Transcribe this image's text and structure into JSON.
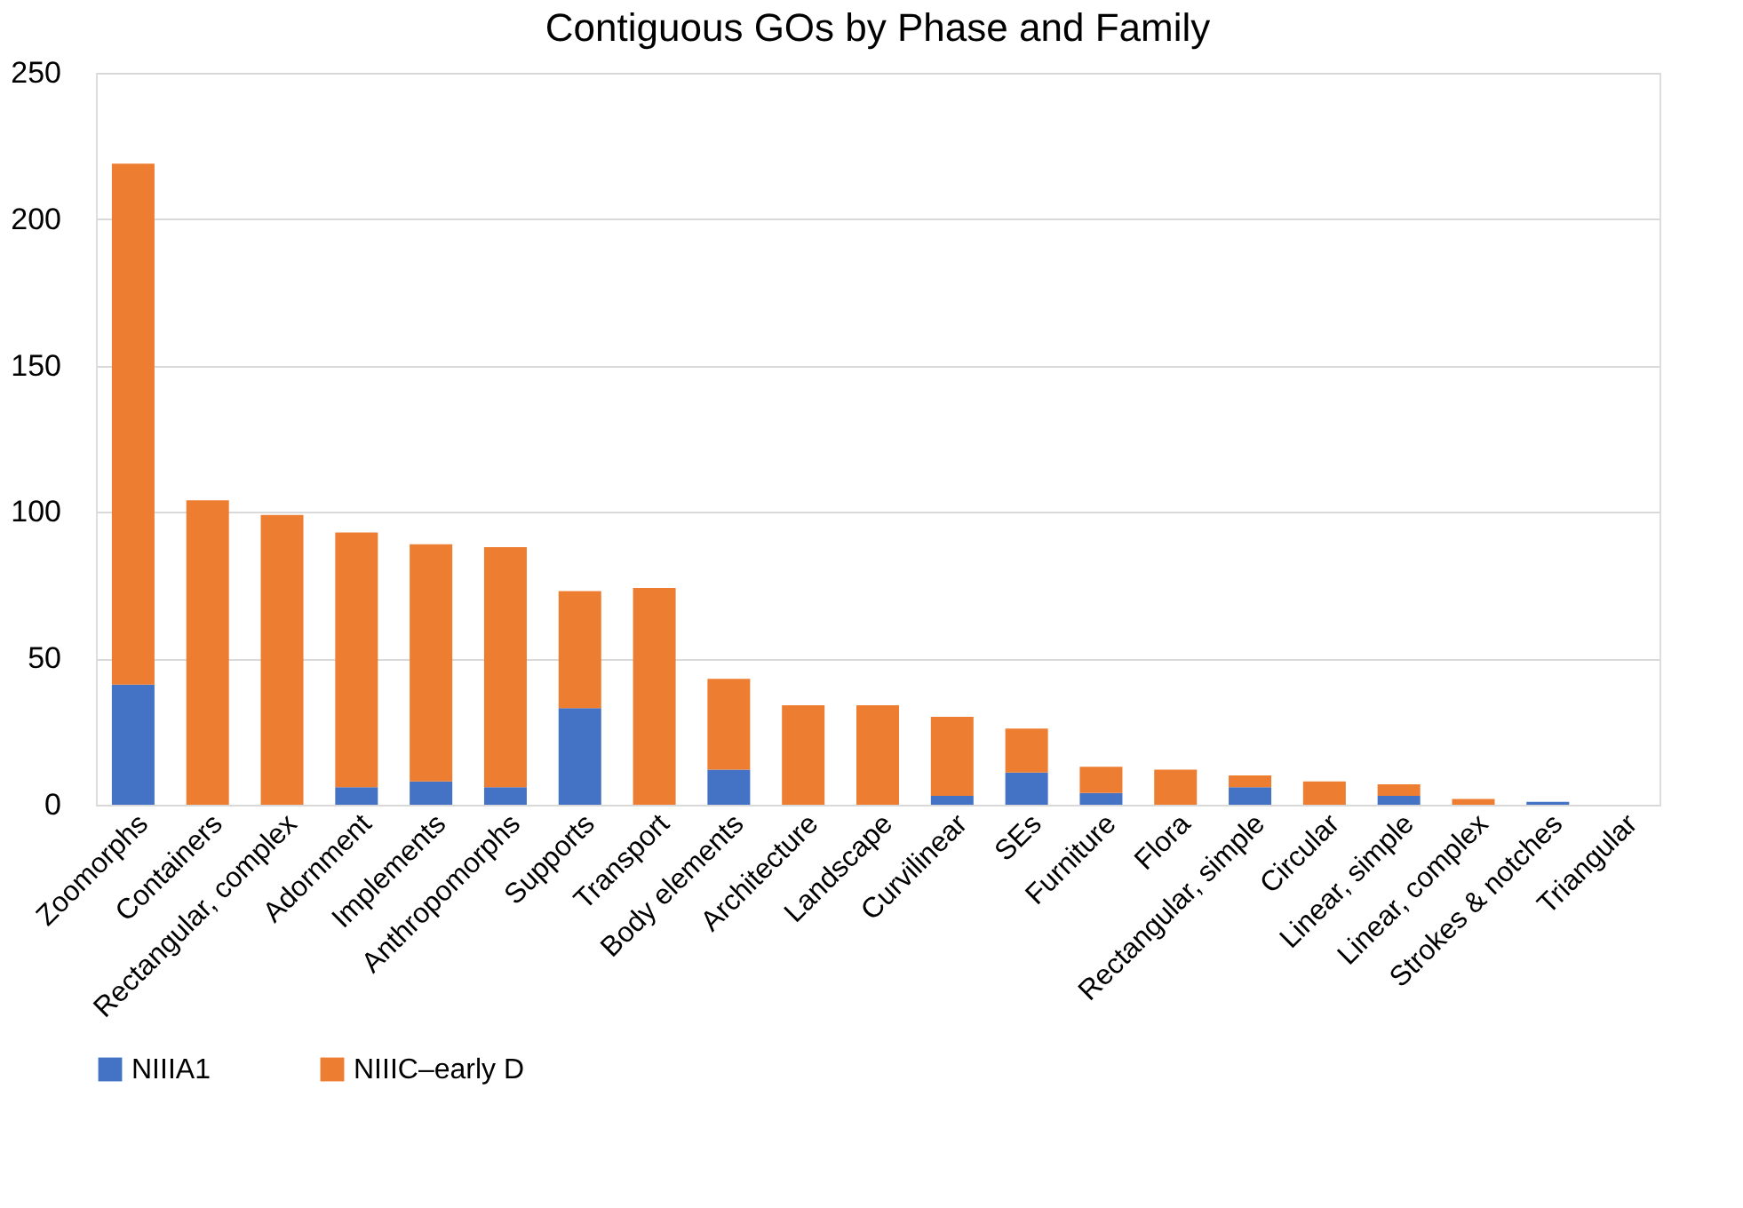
{
  "chart_data": {
    "type": "bar",
    "title": "Contiguous GOs by Phase and Family",
    "stacked": true,
    "categories": [
      "Zoomorphs",
      "Containers",
      "Rectangular, complex",
      "Adornment",
      "Implements",
      "Anthropomorphs",
      "Supports",
      "Transport",
      "Body elements",
      "Architecture",
      "Landscape",
      "Curvilinear",
      "SEs",
      "Furniture",
      "Flora",
      "Rectangular, simple",
      "Circular",
      "Linear, simple",
      "Linear, complex",
      "Strokes & notches",
      "Triangular"
    ],
    "series": [
      {
        "name": "NIIIA1",
        "color": "#4472c4",
        "values": [
          41,
          0,
          0,
          6,
          8,
          6,
          33,
          0,
          12,
          0,
          0,
          3,
          11,
          4,
          0,
          6,
          0,
          3,
          0,
          1,
          0
        ]
      },
      {
        "name": "NIIIC–early D",
        "color": "#ed7d31",
        "values": [
          178,
          104,
          99,
          87,
          81,
          82,
          40,
          74,
          31,
          34,
          34,
          27,
          15,
          9,
          12,
          4,
          8,
          4,
          2,
          0,
          0
        ]
      }
    ],
    "ylim": [
      0,
      250
    ],
    "yticks": [
      0,
      50,
      100,
      150,
      200,
      250
    ],
    "grid": "y",
    "legend": "bottom"
  }
}
